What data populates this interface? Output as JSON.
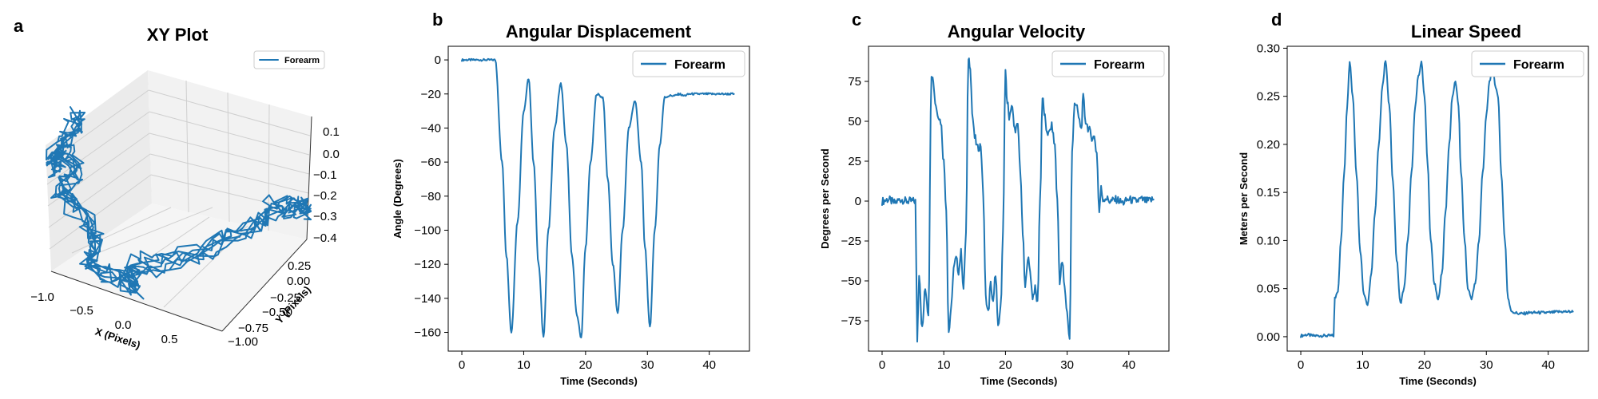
{
  "series_color": "#1f77b4",
  "chart_data": [
    {
      "type": "line3d",
      "panel": "a",
      "title": "XY Plot",
      "xlabel": "X (Pixels)",
      "ylabel": "Y (Pixels)",
      "zlabel": "",
      "legend": [
        "Forearm"
      ],
      "legend_position": "top-right",
      "xlim": [
        -1.0,
        1.0
      ],
      "ylim": [
        -1.0,
        0.3
      ],
      "zlim": [
        -0.4,
        0.15
      ],
      "xticks": [
        "−1.0",
        "−0.5",
        "0.0",
        "0.5"
      ],
      "yticks": [
        "−1.00",
        "−0.75",
        "−0.50",
        "−0.25",
        "0.00",
        "0.25"
      ],
      "zticks": [
        "0.1",
        "0.0",
        "−0.1",
        "−0.2",
        "−0.3",
        "−0.4"
      ],
      "description_of_trace": "Noisy U-shaped trajectory of forearm position in pixel coordinates"
    },
    {
      "type": "line",
      "panel": "b",
      "title": "Angular Displacement",
      "xlabel": "Time (Seconds)",
      "ylabel": "Angle (Degrees)",
      "legend": [
        "Forearm"
      ],
      "legend_position": "top-right",
      "xlim": [
        -2.2,
        46.5
      ],
      "ylim": [
        -171,
        8
      ],
      "xticks": [
        0,
        10,
        20,
        30,
        40
      ],
      "yticks": [
        0,
        -20,
        -40,
        -60,
        -80,
        -100,
        -120,
        -140,
        -160
      ],
      "ytick_labels": [
        "0",
        "−20",
        "−40",
        "−60",
        "−80",
        "−100",
        "−120",
        "−140",
        "−160"
      ],
      "series": [
        {
          "name": "Forearm",
          "x": [
            0,
            2,
            4,
            5.4,
            6.5,
            7.2,
            8,
            9,
            10,
            10.8,
            11.6,
            12.4,
            13.2,
            14,
            15,
            16,
            16.9,
            17.8,
            18.6,
            19.3,
            20,
            20.8,
            21.8,
            22.8,
            23.6,
            24.4,
            25.2,
            26,
            27,
            28,
            29,
            29.6,
            30.4,
            31.2,
            32,
            32.8,
            33.6,
            34.4,
            35.2,
            35.8,
            37,
            39,
            41,
            43,
            44
          ],
          "y": [
            0,
            0,
            0,
            0,
            -60,
            -115,
            -160,
            -95,
            -30,
            -11,
            -60,
            -120,
            -162,
            -100,
            -40,
            -14,
            -50,
            -115,
            -150,
            -163,
            -110,
            -60,
            -20,
            -22,
            -70,
            -120,
            -149,
            -100,
            -40,
            -24,
            -60,
            -110,
            -157,
            -100,
            -50,
            -22,
            -21,
            -21,
            -20,
            -21,
            -20,
            -20,
            -20,
            -20,
            -20
          ]
        }
      ]
    },
    {
      "type": "line",
      "panel": "c",
      "title": "Angular Velocity",
      "xlabel": "Time (Seconds)",
      "ylabel": "Degrees per Second",
      "legend": [
        "Forearm"
      ],
      "legend_position": "top-right",
      "xlim": [
        -2.2,
        46.5
      ],
      "ylim": [
        -94,
        97
      ],
      "xticks": [
        0,
        10,
        20,
        30,
        40
      ],
      "yticks": [
        75,
        50,
        25,
        0,
        -25,
        -50,
        -75
      ],
      "ytick_labels": [
        "75",
        "50",
        "25",
        "0",
        "−25",
        "−50",
        "−75"
      ],
      "series": [
        {
          "name": "Forearm",
          "x": [
            0,
            1,
            2,
            3,
            4,
            5.4,
            5.7,
            6,
            6.5,
            7,
            7.5,
            8,
            8.3,
            8.6,
            9,
            9.5,
            10,
            10.4,
            10.8,
            11.2,
            11.6,
            12,
            12.4,
            12.8,
            13.2,
            13.6,
            14,
            14.3,
            14.6,
            15,
            15.5,
            16,
            16.4,
            16.8,
            17.2,
            17.6,
            18,
            18.4,
            18.8,
            19.2,
            19.6,
            20,
            20.3,
            20.6,
            21,
            21.5,
            22,
            22.4,
            22.8,
            23.2,
            23.6,
            24,
            24.4,
            24.8,
            25.2,
            25.6,
            26,
            26.3,
            26.6,
            27,
            27.5,
            28,
            28.4,
            28.8,
            29.2,
            29.6,
            30,
            30.4,
            30.8,
            31.2,
            31.6,
            32,
            32.3,
            32.6,
            33,
            33.5,
            34,
            34.4,
            34.8,
            35.2,
            35.5,
            35.8,
            36.2,
            37,
            38,
            39,
            40,
            41,
            42,
            43,
            44
          ],
          "y": [
            0,
            1,
            -1,
            1,
            0,
            0,
            -87,
            -45,
            -80,
            -55,
            -70,
            80,
            76,
            62,
            55,
            50,
            25,
            -5,
            -82,
            -68,
            -42,
            -36,
            -44,
            -32,
            -55,
            -20,
            90,
            85,
            55,
            40,
            33,
            35,
            4,
            -60,
            -70,
            -52,
            -64,
            -45,
            -80,
            -68,
            -20,
            80,
            62,
            53,
            60,
            45,
            47,
            20,
            -20,
            -55,
            -35,
            -44,
            -60,
            -55,
            -64,
            0,
            65,
            55,
            45,
            42,
            47,
            35,
            0,
            -50,
            -38,
            -55,
            -70,
            -87,
            30,
            62,
            58,
            50,
            45,
            65,
            50,
            45,
            40,
            40,
            30,
            -7,
            8,
            1,
            2,
            0,
            1,
            -1,
            1,
            0,
            1,
            0,
            1
          ]
        }
      ]
    },
    {
      "type": "line",
      "panel": "d",
      "title": "Linear Speed",
      "xlabel": "Time (Seconds)",
      "ylabel": "Meters per Second",
      "legend": [
        "Forearm"
      ],
      "legend_position": "top-right",
      "xlim": [
        -2.2,
        46.5
      ],
      "ylim": [
        -0.015,
        0.302
      ],
      "xticks": [
        0,
        10,
        20,
        30,
        40
      ],
      "yticks": [
        0.3,
        0.25,
        0.2,
        0.15,
        0.1,
        0.05,
        0.0
      ],
      "ytick_labels": [
        "0.30",
        "0.25",
        "0.20",
        "0.15",
        "0.10",
        "0.05",
        "0.00"
      ],
      "series": [
        {
          "name": "Forearm",
          "x": [
            0,
            1,
            2,
            3,
            4,
            5.3,
            5.5,
            6,
            6.5,
            7,
            7.5,
            7.9,
            8.4,
            9,
            9.6,
            10.2,
            10.8,
            11.4,
            12,
            12.6,
            13.2,
            13.7,
            14.3,
            14.9,
            15.5,
            16.1,
            16.7,
            17.3,
            17.9,
            18.5,
            19,
            19.5,
            20,
            20.5,
            21,
            21.6,
            22.2,
            22.8,
            23.4,
            24,
            24.5,
            25,
            25.5,
            25.9,
            26.5,
            27,
            27.6,
            28.2,
            28.8,
            29.4,
            30,
            30.5,
            31,
            31.5,
            31.9,
            32.4,
            33,
            33.5,
            34,
            34.6,
            35.3,
            36,
            37,
            38,
            40,
            42,
            44
          ],
          "y": [
            0.001,
            0.002,
            0.001,
            0.001,
            0.001,
            0.001,
            0.04,
            0.048,
            0.1,
            0.17,
            0.24,
            0.287,
            0.25,
            0.17,
            0.09,
            0.045,
            0.033,
            0.065,
            0.13,
            0.2,
            0.26,
            0.288,
            0.24,
            0.16,
            0.08,
            0.035,
            0.05,
            0.1,
            0.17,
            0.24,
            0.27,
            0.285,
            0.25,
            0.18,
            0.1,
            0.055,
            0.038,
            0.065,
            0.13,
            0.2,
            0.25,
            0.265,
            0.24,
            0.17,
            0.1,
            0.05,
            0.04,
            0.055,
            0.1,
            0.17,
            0.23,
            0.265,
            0.28,
            0.26,
            0.25,
            0.17,
            0.1,
            0.04,
            0.027,
            0.025,
            0.024,
            0.024,
            0.025,
            0.025,
            0.025,
            0.026,
            0.026
          ]
        }
      ]
    }
  ]
}
